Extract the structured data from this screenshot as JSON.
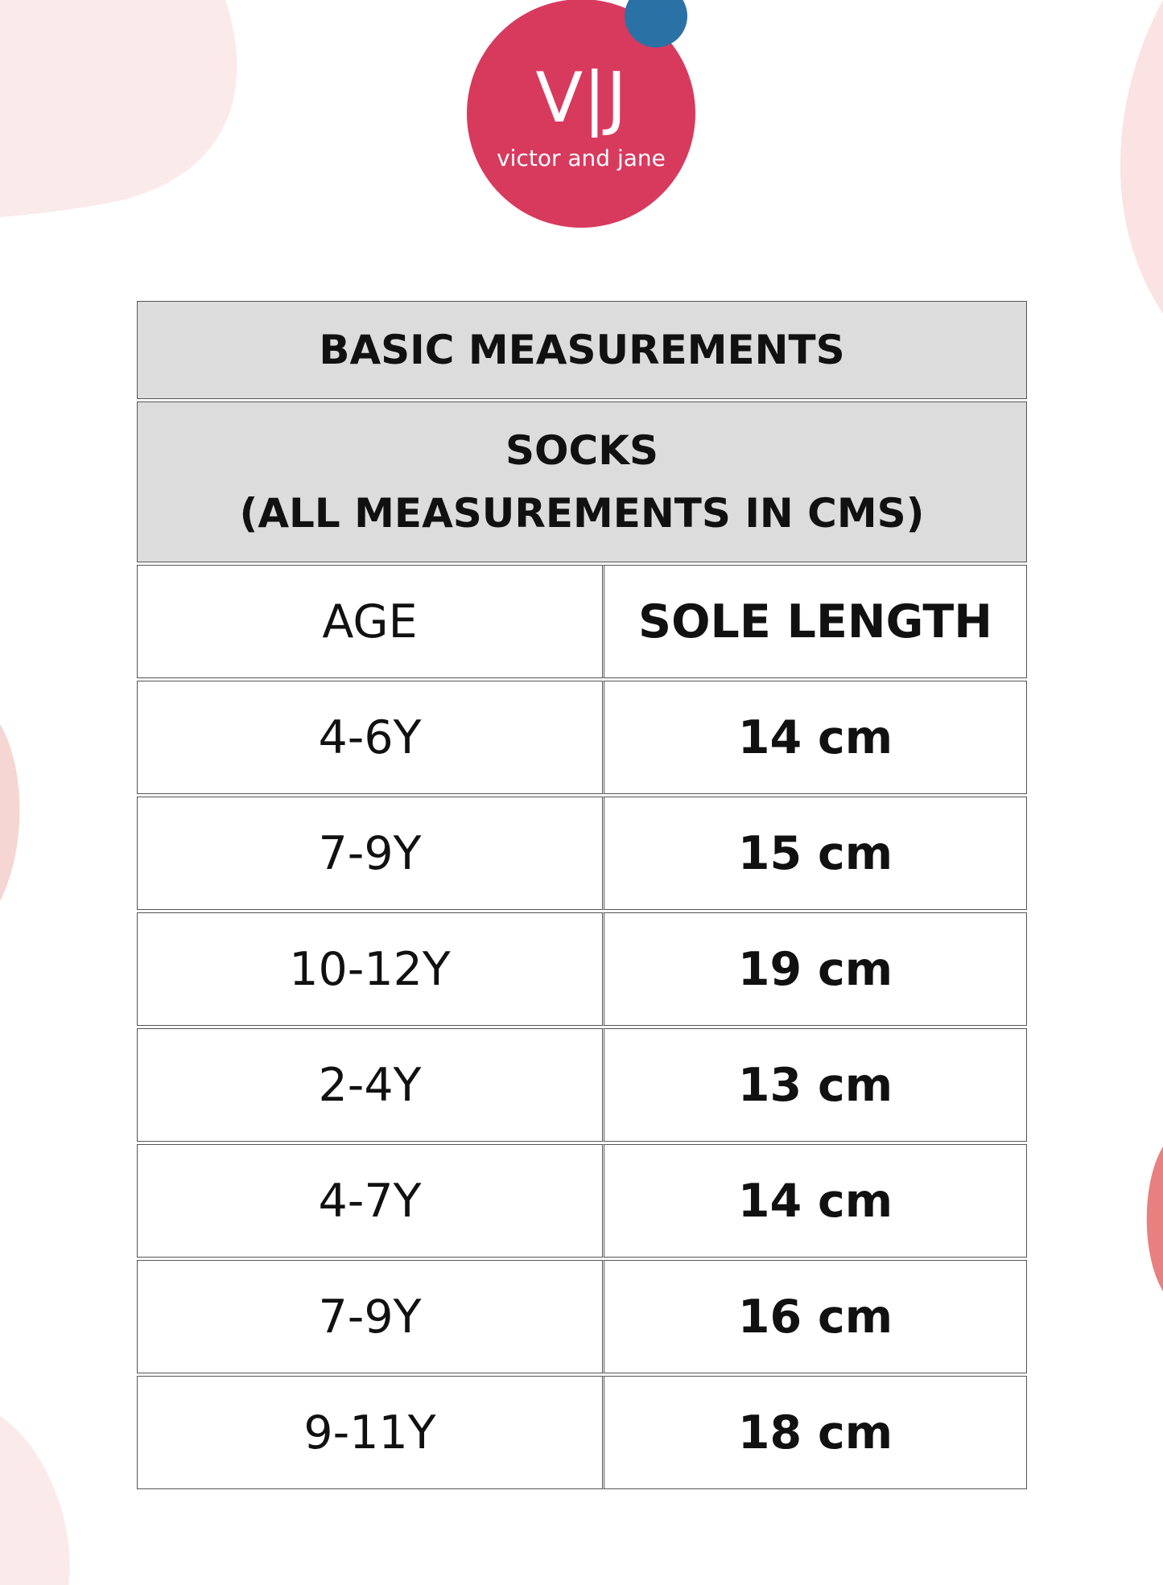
{
  "brand": {
    "monogram": "V|J",
    "name": "victor and jane",
    "colors": {
      "logo": "#d83a5e",
      "dot": "#2a72a5",
      "blob_light": "#fbe9e9",
      "blob_accent": "#e98080"
    }
  },
  "table": {
    "title": "BASIC MEASUREMENTS",
    "subtitle_line1": "SOCKS",
    "subtitle_line2": "(ALL MEASUREMENTS IN CMS)",
    "columns": [
      "AGE",
      "SOLE LENGTH"
    ],
    "rows": [
      [
        "4-6Y",
        "14 cm"
      ],
      [
        "7-9Y",
        "15 cm"
      ],
      [
        "10-12Y",
        "19 cm"
      ],
      [
        "2-4Y",
        "13 cm"
      ],
      [
        "4-7Y",
        "14 cm"
      ],
      [
        "7-9Y",
        "16 cm"
      ],
      [
        "9-11Y",
        "18 cm"
      ]
    ]
  }
}
